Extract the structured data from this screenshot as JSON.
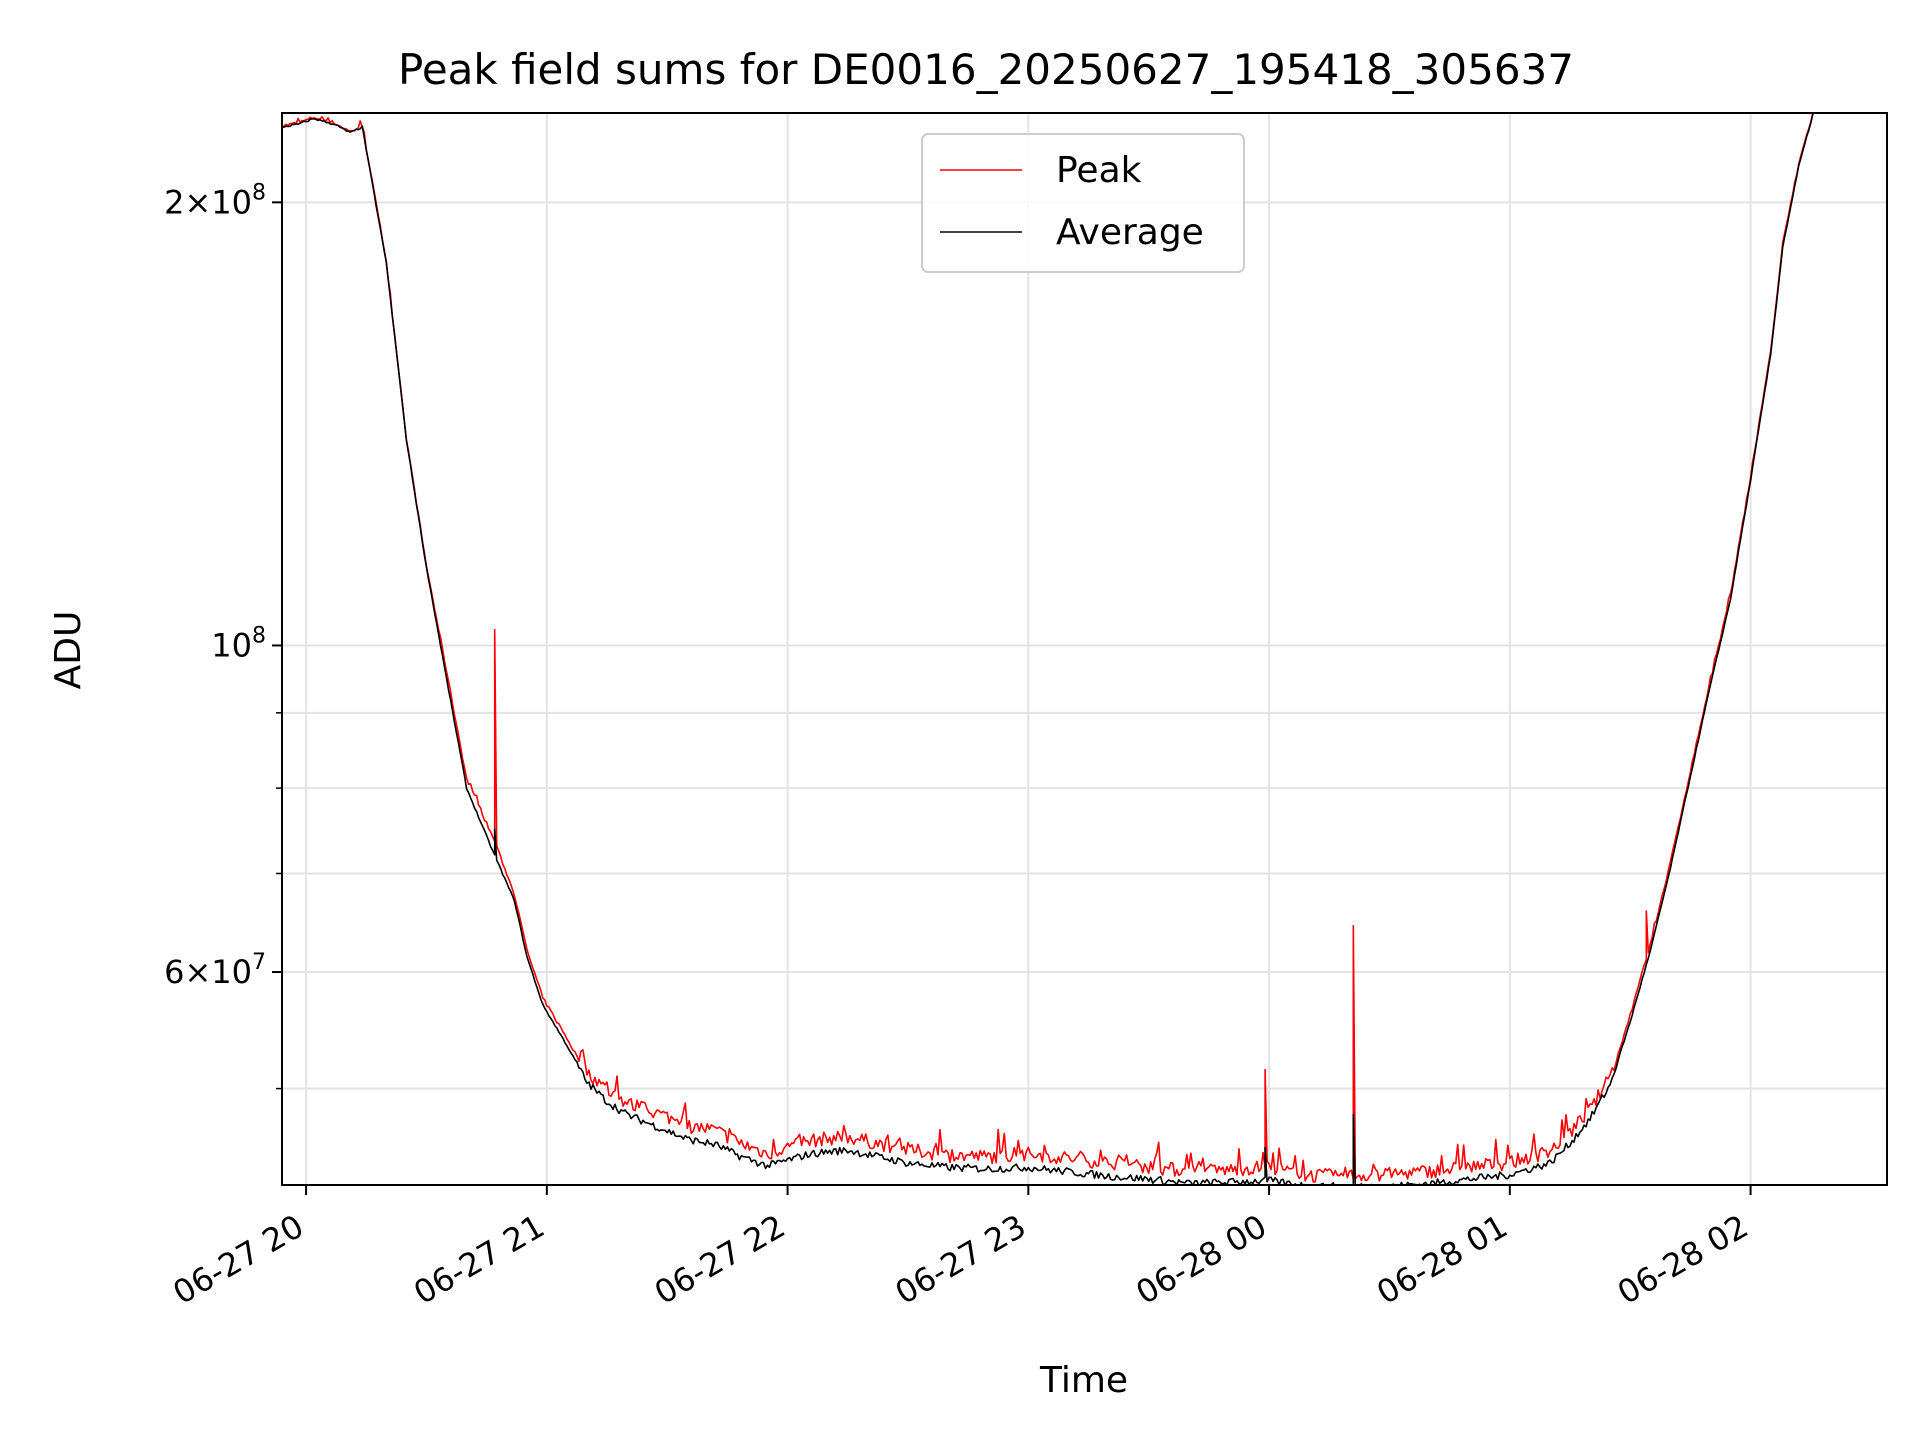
{
  "chart_data": {
    "type": "line",
    "title": "Peak field sums for DE0016_20250627_195418_305637",
    "xlabel": "Time",
    "ylabel": "ADU",
    "yscale": "log",
    "ylim": [
      43000000,
      230000000
    ],
    "xlim": [
      "2025-06-27 19:54",
      "2025-06-28 02:34"
    ],
    "grid": true,
    "legend_position": "top-center",
    "x_ticks": [
      {
        "t": "2025-06-27 20:00",
        "label": "06-27 20"
      },
      {
        "t": "2025-06-27 21:00",
        "label": "06-27 21"
      },
      {
        "t": "2025-06-27 22:00",
        "label": "06-27 22"
      },
      {
        "t": "2025-06-27 23:00",
        "label": "06-27 23"
      },
      {
        "t": "2025-06-28 00:00",
        "label": "06-28 00"
      },
      {
        "t": "2025-06-28 01:00",
        "label": "06-28 01"
      },
      {
        "t": "2025-06-28 02:00",
        "label": "06-28 02"
      }
    ],
    "y_major_ticks": [
      {
        "value": 200000000,
        "mantissa": "2",
        "exp": "8"
      },
      {
        "value": 100000000,
        "mantissa": "",
        "exp": "8"
      },
      {
        "value": 60000000,
        "mantissa": "6",
        "exp": "7"
      }
    ],
    "y_minor_ticks": [
      90000000,
      80000000,
      70000000,
      50000000,
      40000000
    ],
    "series": [
      {
        "name": "Peak",
        "color": "#ff0000",
        "x": [
          "2025-06-27 19:54",
          "2025-06-27 19:58",
          "2025-06-27 20:02",
          "2025-06-27 20:07",
          "2025-06-27 20:11",
          "2025-06-27 20:14",
          "2025-06-27 20:20",
          "2025-06-27 20:25",
          "2025-06-27 20:30",
          "2025-06-27 20:35",
          "2025-06-27 20:40",
          "2025-06-27 20:47",
          "2025-06-27 20:52",
          "2025-06-27 20:55",
          "2025-06-27 20:59",
          "2025-06-27 21:05",
          "2025-06-27 21:10",
          "2025-06-27 21:15",
          "2025-06-27 21:20",
          "2025-06-27 21:25",
          "2025-06-27 21:30",
          "2025-06-27 21:35",
          "2025-06-27 21:42",
          "2025-06-27 21:48",
          "2025-06-27 21:55",
          "2025-06-27 22:00",
          "2025-06-27 22:05",
          "2025-06-27 22:10",
          "2025-06-27 22:15",
          "2025-06-27 22:20",
          "2025-06-27 22:30",
          "2025-06-27 22:40",
          "2025-06-27 22:50",
          "2025-06-27 23:00",
          "2025-06-27 23:10",
          "2025-06-27 23:20",
          "2025-06-27 23:30",
          "2025-06-27 23:40",
          "2025-06-27 23:50",
          "2025-06-28 00:00",
          "2025-06-28 00:10",
          "2025-06-28 00:20",
          "2025-06-28 00:30",
          "2025-06-28 00:40",
          "2025-06-28 00:50",
          "2025-06-28 01:00",
          "2025-06-28 01:10",
          "2025-06-28 01:15",
          "2025-06-28 01:20",
          "2025-06-28 01:25",
          "2025-06-28 01:30",
          "2025-06-28 01:35",
          "2025-06-28 01:40",
          "2025-06-28 01:45",
          "2025-06-28 01:50",
          "2025-06-28 01:55",
          "2025-06-28 02:00",
          "2025-06-28 02:05",
          "2025-06-28 02:08",
          "2025-06-28 02:12",
          "2025-06-28 02:16"
        ],
        "y": [
          225000000,
          226000000,
          228000000,
          226000000,
          223000000,
          225000000,
          182000000,
          138000000,
          113000000,
          96000000,
          81000000,
          73500000,
          67500000,
          62000000,
          57500000,
          54000000,
          51000000,
          49500000,
          48500000,
          48000000,
          47500000,
          46800000,
          46500000,
          45600000,
          44800000,
          45300000,
          45700000,
          45900000,
          46000000,
          45700000,
          45100000,
          44700000,
          44600000,
          44800000,
          44500000,
          44200000,
          43900000,
          43600000,
          43700000,
          43900000,
          43300000,
          43300000,
          43400000,
          43600000,
          43900000,
          44200000,
          45000000,
          46300000,
          48000000,
          50500000,
          56000000,
          62500000,
          71000000,
          82000000,
          94500000,
          108000000,
          130000000,
          158000000,
          187000000,
          212000000,
          232000000
        ],
        "spikes": [
          {
            "t": "2025-06-27 20:47",
            "value": 102500000
          },
          {
            "t": "2025-06-27 23:59",
            "value": 51500000
          },
          {
            "t": "2025-06-28 00:21",
            "value": 64500000
          },
          {
            "t": "2025-06-28 01:34",
            "value": 66000000
          }
        ]
      },
      {
        "name": "Average",
        "color": "#000000",
        "x": [
          "2025-06-27 19:54",
          "2025-06-27 19:58",
          "2025-06-27 20:02",
          "2025-06-27 20:07",
          "2025-06-27 20:11",
          "2025-06-27 20:14",
          "2025-06-27 20:20",
          "2025-06-27 20:25",
          "2025-06-27 20:30",
          "2025-06-27 20:35",
          "2025-06-27 20:40",
          "2025-06-27 20:47",
          "2025-06-27 20:52",
          "2025-06-27 20:55",
          "2025-06-27 20:59",
          "2025-06-27 21:05",
          "2025-06-27 21:10",
          "2025-06-27 21:15",
          "2025-06-27 21:20",
          "2025-06-27 21:25",
          "2025-06-27 21:30",
          "2025-06-27 21:35",
          "2025-06-27 21:42",
          "2025-06-27 21:48",
          "2025-06-27 21:55",
          "2025-06-27 22:00",
          "2025-06-27 22:05",
          "2025-06-27 22:10",
          "2025-06-27 22:15",
          "2025-06-27 22:20",
          "2025-06-27 22:30",
          "2025-06-27 22:40",
          "2025-06-27 22:50",
          "2025-06-27 23:00",
          "2025-06-27 23:10",
          "2025-06-27 23:20",
          "2025-06-27 23:30",
          "2025-06-27 23:40",
          "2025-06-27 23:50",
          "2025-06-28 00:00",
          "2025-06-28 00:10",
          "2025-06-28 00:20",
          "2025-06-28 00:30",
          "2025-06-28 00:40",
          "2025-06-28 00:50",
          "2025-06-28 01:00",
          "2025-06-28 01:10",
          "2025-06-28 01:15",
          "2025-06-28 01:20",
          "2025-06-28 01:25",
          "2025-06-28 01:30",
          "2025-06-28 01:35",
          "2025-06-28 01:40",
          "2025-06-28 01:45",
          "2025-06-28 01:50",
          "2025-06-28 01:55",
          "2025-06-28 02:00",
          "2025-06-28 02:05",
          "2025-06-28 02:08",
          "2025-06-28 02:12",
          "2025-06-28 02:16"
        ],
        "y": [
          225000000,
          226000000,
          228000000,
          226000000,
          223000000,
          225000000,
          182000000,
          138000000,
          113000000,
          95000000,
          80000000,
          72000000,
          67000000,
          61500000,
          57000000,
          53500000,
          50500000,
          49000000,
          48000000,
          47400000,
          46800000,
          46200000,
          45800000,
          45000000,
          44300000,
          44700000,
          45100000,
          45300000,
          45400000,
          45100000,
          44500000,
          44200000,
          44100000,
          44200000,
          43900000,
          43600000,
          43400000,
          43100000,
          43200000,
          43300000,
          42900000,
          42900000,
          42900000,
          43100000,
          43400000,
          43700000,
          44500000,
          45900000,
          47700000,
          50300000,
          55500000,
          62000000,
          70500000,
          81500000,
          94000000,
          107500000,
          129500000,
          157500000,
          186500000,
          211500000,
          232000000
        ],
        "spikes": [
          {
            "t": "2025-06-27 20:47",
            "value": 75000000
          },
          {
            "t": "2025-06-27 23:59",
            "value": 45600000
          },
          {
            "t": "2025-06-28 00:21",
            "value": 48000000
          }
        ]
      }
    ]
  }
}
